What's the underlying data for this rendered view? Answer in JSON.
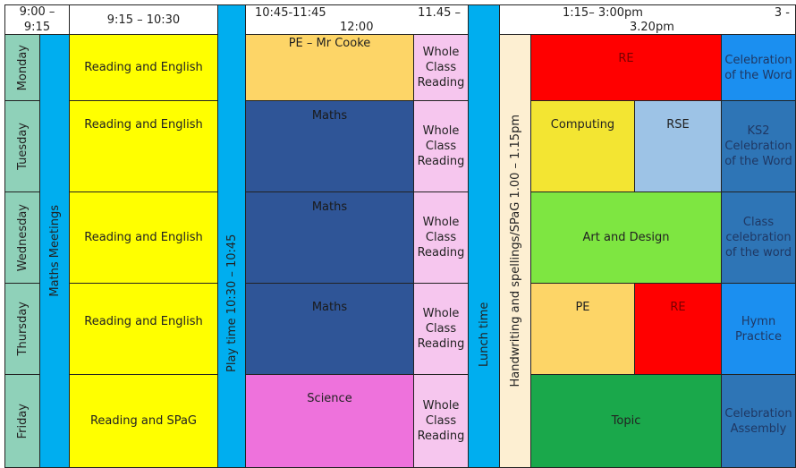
{
  "header": {
    "t1": "9:00 – 9:15",
    "t2": "9:15 – 10:30",
    "t3": "10:45-11:45",
    "t4": "11.45 –",
    "t4b": "12:00",
    "t5": "1:15– 3:00pm",
    "t6": "3 -",
    "t6b": "3.20pm"
  },
  "days": [
    "Monday",
    "Tuesday",
    "Wednesday",
    "Thursday",
    "Friday"
  ],
  "bands": {
    "maths_meetings": "Maths Meetings",
    "play": "Play time 10:30 – 10:45",
    "lunch": "Lunch time",
    "handwriting": "Handwriting and spellings/SPaG 1.00 – 1.15pm"
  },
  "morning": [
    "Reading and English",
    "Reading and English",
    "Reading and English",
    "Reading and English",
    "Reading and SPaG"
  ],
  "midmorning": [
    "PE – Mr Cooke",
    "Maths",
    "Maths",
    "Maths",
    "Science"
  ],
  "wcr": "Whole Class Reading",
  "afternoon": {
    "mon": "RE",
    "tue_a": "Computing",
    "tue_b": "RSE",
    "wed": "Art and Design",
    "thu_a": "PE",
    "thu_b": "RE",
    "fri": "Topic"
  },
  "end": [
    "Celebration of the Word",
    "KS2 Celebration of the Word",
    "Class celebration of the word",
    "Hymn Practice",
    "Celebration Assembly"
  ],
  "colors": {
    "day": "#8fd1b9",
    "blue": "#00aeef",
    "yellow": "#ffff00",
    "pink": "#f6c6ee",
    "maths": "#2f5597",
    "red": "#ff0000",
    "science": "#ee72dc"
  }
}
